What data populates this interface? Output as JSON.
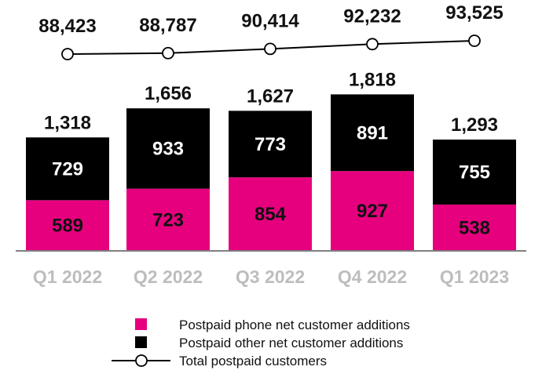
{
  "chart_data": {
    "type": "bar",
    "stacked": true,
    "categories": [
      "Q1 2022",
      "Q2 2022",
      "Q3 2022",
      "Q4 2022",
      "Q1 2023"
    ],
    "series": [
      {
        "name": "Postpaid phone net customer additions",
        "values": [
          589,
          723,
          854,
          927,
          538
        ],
        "color": "#e6007e"
      },
      {
        "name": "Postpaid other net customer additions",
        "values": [
          729,
          933,
          773,
          891,
          755
        ],
        "color": "#000000"
      }
    ],
    "totals": [
      1318,
      1656,
      1627,
      1818,
      1293
    ],
    "total_labels": [
      "1,318",
      "1,656",
      "1,627",
      "1,818",
      "1,293"
    ],
    "line_series": {
      "name": "Total postpaid customers",
      "values": [
        88423,
        88787,
        90414,
        92232,
        93525
      ],
      "labels": [
        "88,423",
        "88,787",
        "90,414",
        "92,232",
        "93,525"
      ],
      "color": "#000000"
    },
    "category_label_color": "#bdbdbd",
    "legend_position": "bottom-center"
  }
}
